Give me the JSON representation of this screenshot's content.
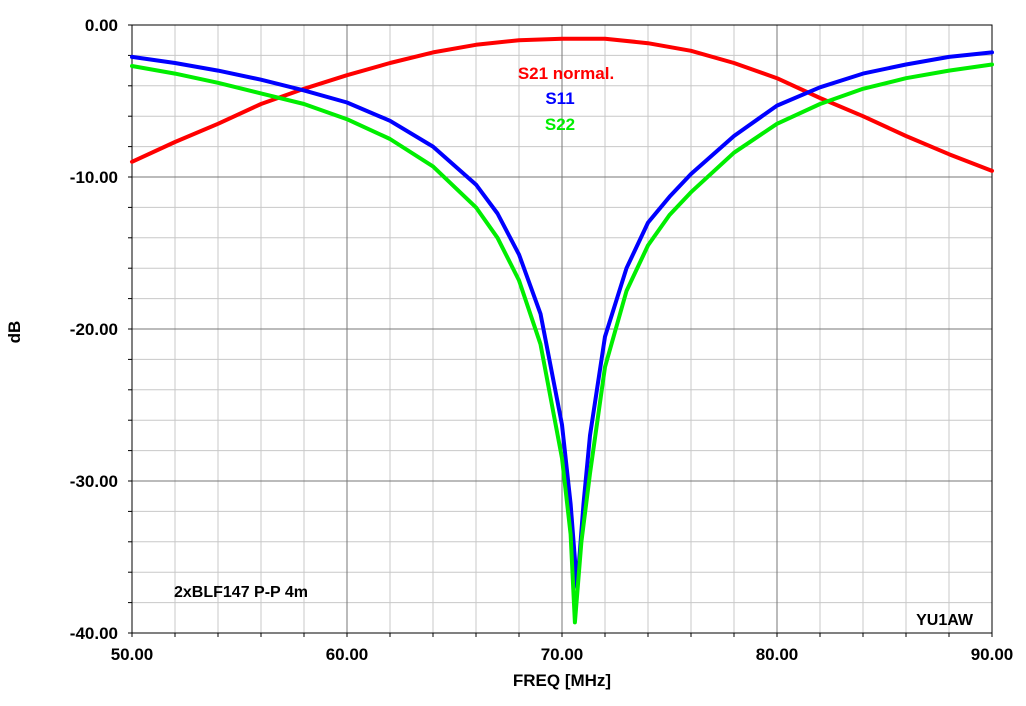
{
  "chart_data": {
    "type": "line",
    "xlabel": "FREQ [MHz]",
    "ylabel": "dB",
    "xlim": [
      50,
      90
    ],
    "ylim": [
      -40,
      0
    ],
    "grid": true,
    "x_ticks": [
      "50.00",
      "60.00",
      "70.00",
      "80.00",
      "90.00"
    ],
    "y_ticks": [
      "0.00",
      "-10.00",
      "-20.00",
      "-30.00",
      "-40.00"
    ],
    "series": [
      {
        "name": "S21 normal.",
        "color": "#ff0000",
        "points": [
          [
            50,
            -9.0
          ],
          [
            52,
            -7.7
          ],
          [
            54,
            -6.5
          ],
          [
            56,
            -5.2
          ],
          [
            58,
            -4.2
          ],
          [
            60,
            -3.3
          ],
          [
            62,
            -2.5
          ],
          [
            64,
            -1.8
          ],
          [
            66,
            -1.3
          ],
          [
            68,
            -1.0
          ],
          [
            70,
            -0.9
          ],
          [
            72,
            -0.9
          ],
          [
            74,
            -1.2
          ],
          [
            76,
            -1.7
          ],
          [
            78,
            -2.5
          ],
          [
            80,
            -3.5
          ],
          [
            82,
            -4.8
          ],
          [
            84,
            -6.0
          ],
          [
            86,
            -7.3
          ],
          [
            88,
            -8.5
          ],
          [
            90,
            -9.6
          ]
        ]
      },
      {
        "name": "S11",
        "color": "#0000ff",
        "points": [
          [
            50,
            -2.1
          ],
          [
            52,
            -2.5
          ],
          [
            54,
            -3.0
          ],
          [
            56,
            -3.6
          ],
          [
            58,
            -4.3
          ],
          [
            60,
            -5.1
          ],
          [
            62,
            -6.3
          ],
          [
            64,
            -8.0
          ],
          [
            66,
            -10.5
          ],
          [
            67,
            -12.4
          ],
          [
            68,
            -15.1
          ],
          [
            69,
            -19.0
          ],
          [
            70,
            -26.3
          ],
          [
            70.4,
            -31.5
          ],
          [
            70.7,
            -37.0
          ],
          [
            71,
            -31.5
          ],
          [
            71.3,
            -27.0
          ],
          [
            72,
            -20.5
          ],
          [
            73,
            -16.0
          ],
          [
            74,
            -13.0
          ],
          [
            75,
            -11.3
          ],
          [
            76,
            -9.8
          ],
          [
            78,
            -7.3
          ],
          [
            80,
            -5.3
          ],
          [
            82,
            -4.1
          ],
          [
            84,
            -3.2
          ],
          [
            86,
            -2.6
          ],
          [
            88,
            -2.1
          ],
          [
            90,
            -1.8
          ]
        ]
      },
      {
        "name": "S22",
        "color": "#00ee00",
        "points": [
          [
            50,
            -2.7
          ],
          [
            52,
            -3.2
          ],
          [
            54,
            -3.8
          ],
          [
            56,
            -4.5
          ],
          [
            58,
            -5.2
          ],
          [
            60,
            -6.2
          ],
          [
            62,
            -7.5
          ],
          [
            64,
            -9.3
          ],
          [
            66,
            -12.0
          ],
          [
            67,
            -14.0
          ],
          [
            68,
            -16.8
          ],
          [
            69,
            -21.0
          ],
          [
            70,
            -28.5
          ],
          [
            70.4,
            -33.5
          ],
          [
            70.6,
            -39.3
          ],
          [
            70.9,
            -34.0
          ],
          [
            71.3,
            -29.5
          ],
          [
            72,
            -22.5
          ],
          [
            73,
            -17.5
          ],
          [
            74,
            -14.5
          ],
          [
            75,
            -12.5
          ],
          [
            76,
            -11.0
          ],
          [
            78,
            -8.4
          ],
          [
            80,
            -6.5
          ],
          [
            82,
            -5.2
          ],
          [
            84,
            -4.2
          ],
          [
            86,
            -3.5
          ],
          [
            88,
            -3.0
          ],
          [
            90,
            -2.6
          ]
        ]
      }
    ],
    "annotations": {
      "title": "2xBLF147 P-P 4m",
      "author": "YU1AW"
    }
  }
}
